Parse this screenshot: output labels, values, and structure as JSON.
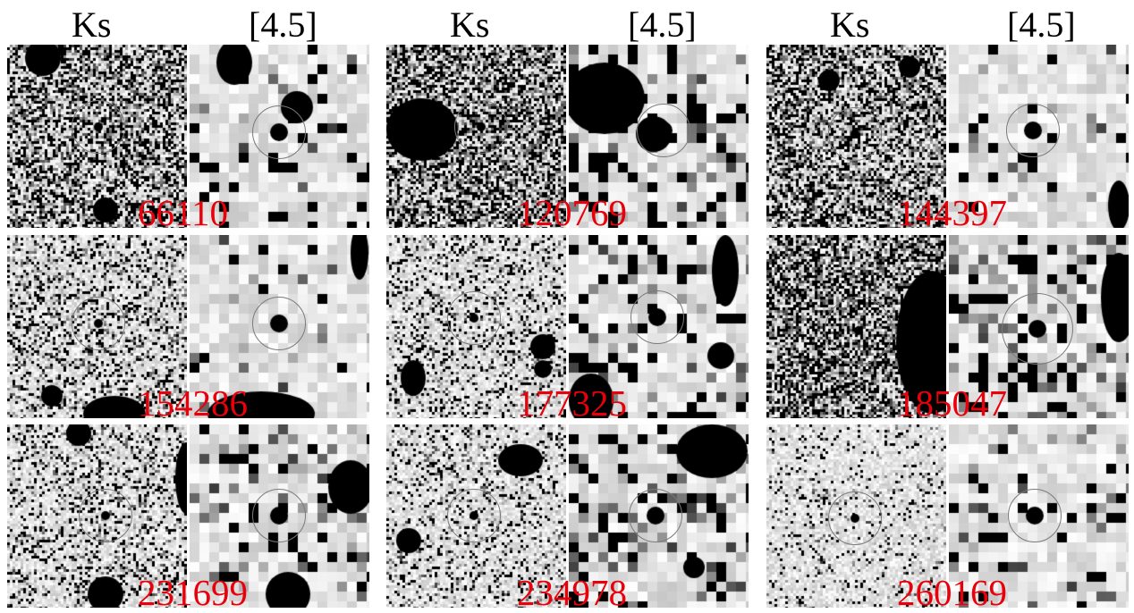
{
  "headers": [
    "Ks",
    "[4.5]",
    "Ks",
    "[4.5]",
    "Ks",
    "[4.5]"
  ],
  "label_color": "#e8000b",
  "panels": [
    {
      "id": "66110",
      "ks_density": 0.55,
      "irac_density": 0.15
    },
    {
      "id": "120769",
      "ks_density": 0.6,
      "irac_density": 0.3
    },
    {
      "id": "144397",
      "ks_density": 0.55,
      "irac_density": 0.12
    },
    {
      "id": "154286",
      "ks_density": 0.3,
      "irac_density": 0.08
    },
    {
      "id": "177325",
      "ks_density": 0.25,
      "irac_density": 0.25
    },
    {
      "id": "185047",
      "ks_density": 0.65,
      "irac_density": 0.3
    },
    {
      "id": "231699",
      "ks_density": 0.25,
      "irac_density": 0.22
    },
    {
      "id": "234978",
      "ks_density": 0.22,
      "irac_density": 0.28
    },
    {
      "id": "260169",
      "ks_density": 0.12,
      "irac_density": 0.15
    }
  ]
}
